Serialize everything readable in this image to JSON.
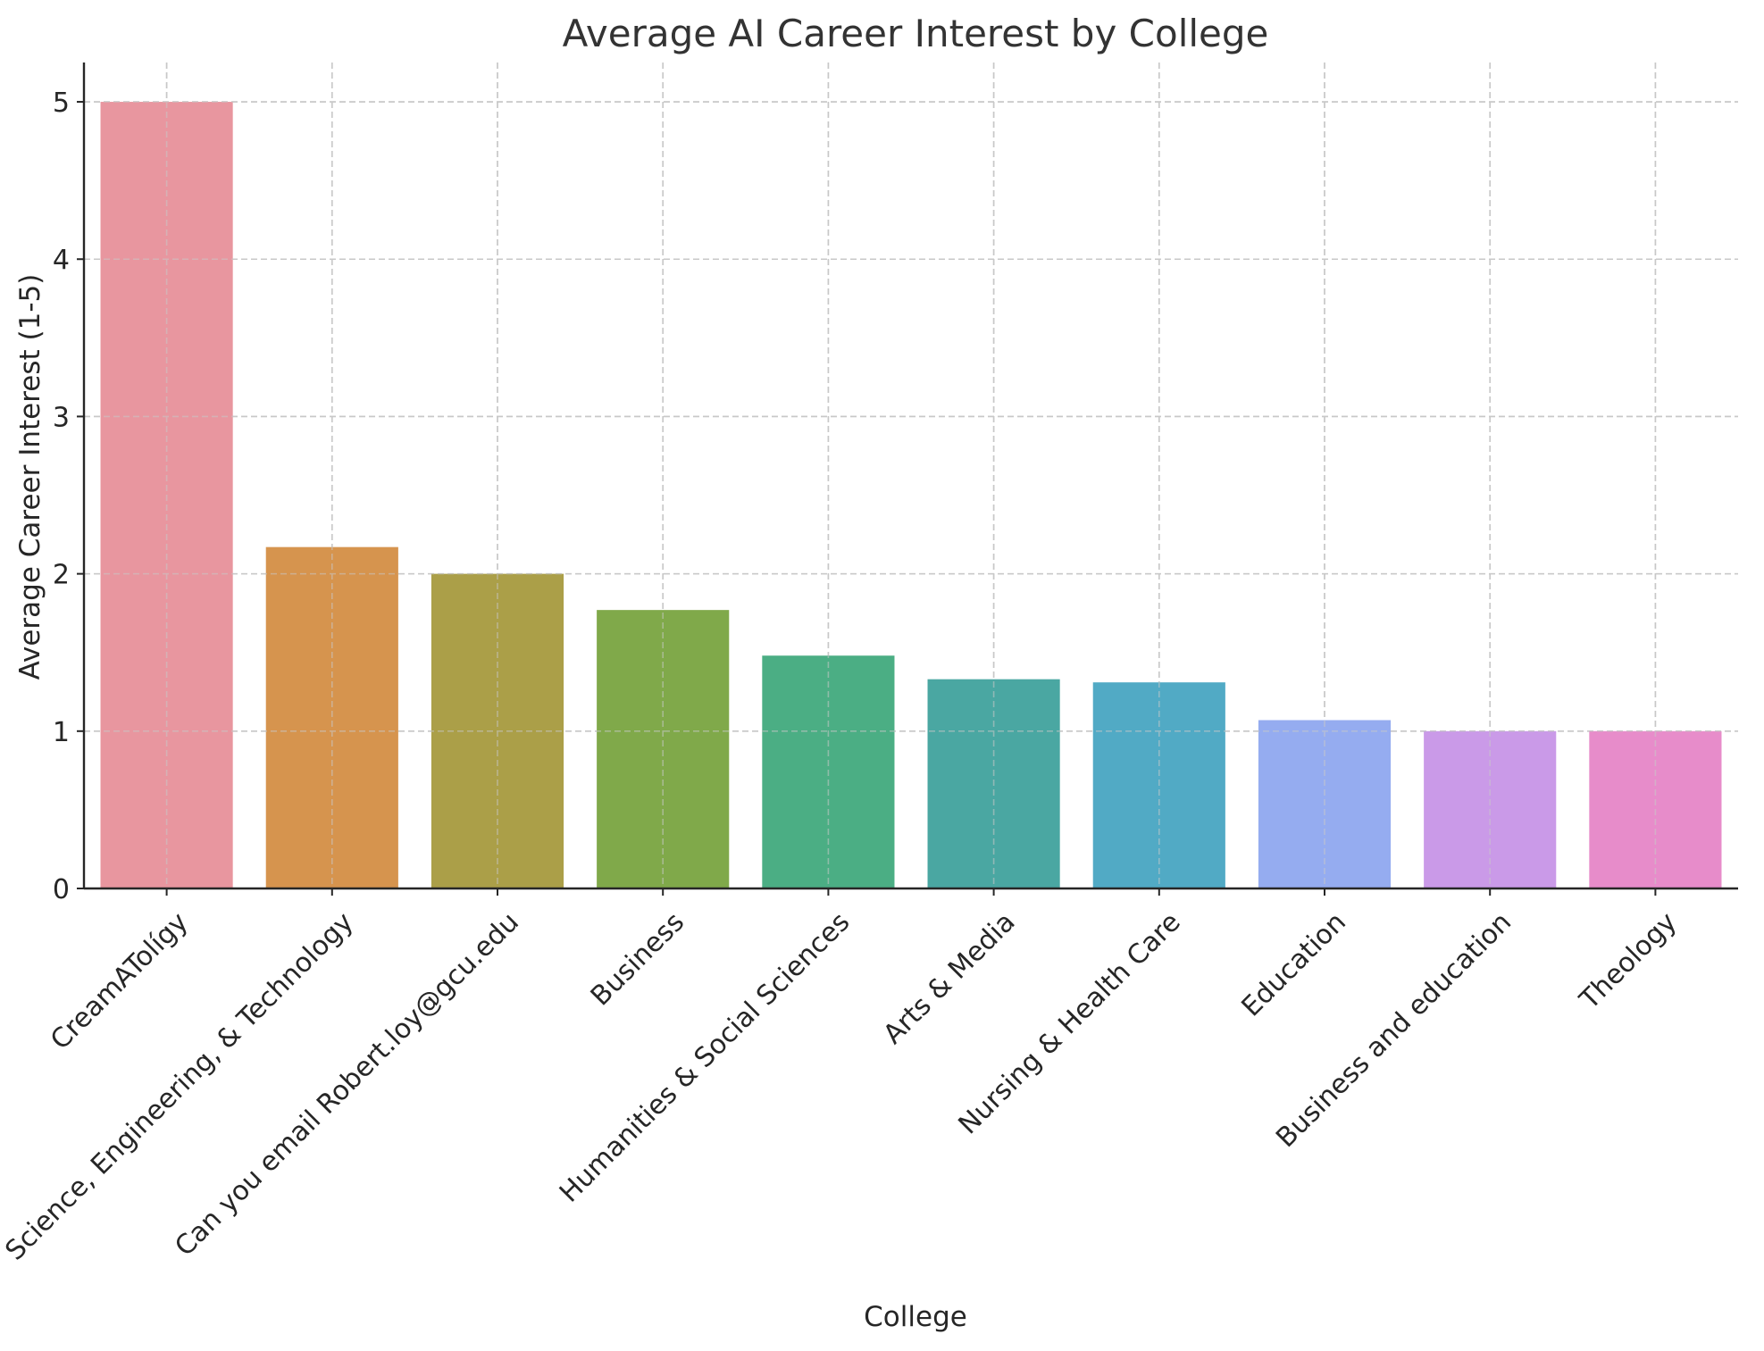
{
  "chart_data": {
    "type": "bar",
    "title": "Average AI Career Interest by College",
    "xlabel": "College",
    "ylabel": "Average Career Interest (1-5)",
    "categories": [
      "CreamATolígy",
      "Science, Engineering, & Technology",
      "Can you email Robert.loy@gcu.edu",
      "Business",
      "Humanities & Social Sciences",
      "Arts & Media",
      "Nursing & Health Care",
      "Education",
      "Business and education",
      "Theology"
    ],
    "values": [
      5.0,
      2.17,
      2.0,
      1.77,
      1.48,
      1.33,
      1.31,
      1.07,
      1.0,
      1.0
    ],
    "colors": [
      "#e8969f",
      "#d6944e",
      "#ab9f48",
      "#80a94a",
      "#4bae84",
      "#4aa7a2",
      "#51aac5",
      "#95acf0",
      "#ca9ae8",
      "#e78cca"
    ],
    "ylim": [
      0,
      5.25
    ],
    "yticks": [
      0,
      1,
      2,
      3,
      4,
      5
    ],
    "grid": true,
    "legend": "none"
  }
}
